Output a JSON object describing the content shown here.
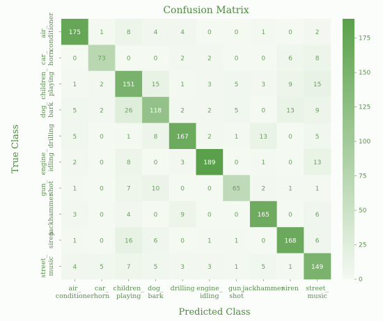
{
  "chart_data": {
    "type": "heatmap",
    "title": "Confusion Matrix",
    "xlabel": "Predicted Class",
    "ylabel": "True Class",
    "x_tick_labels": [
      [
        "air_",
        "conditioner"
      ],
      [
        "car_",
        "horn"
      ],
      [
        "children_",
        "playing"
      ],
      [
        "dog_",
        "bark"
      ],
      [
        "drilling"
      ],
      [
        "engine_",
        "idling"
      ],
      [
        "gun_",
        "shot"
      ],
      [
        "jackhammer"
      ],
      [
        "siren"
      ],
      [
        "street_",
        "music"
      ]
    ],
    "y_tick_labels": [
      [
        "air_",
        "conditioner"
      ],
      [
        "car_",
        "horn"
      ],
      [
        "children_",
        "playing"
      ],
      [
        "dog_",
        "bark"
      ],
      [
        "drilling"
      ],
      [
        "engine_",
        "idling"
      ],
      [
        "gun_",
        "shot"
      ],
      [
        "jackhammer"
      ],
      [
        "siren"
      ],
      [
        "street_",
        "music"
      ]
    ],
    "matrix": [
      [
        175,
        1,
        8,
        4,
        4,
        0,
        0,
        1,
        0,
        2
      ],
      [
        0,
        73,
        0,
        0,
        2,
        2,
        0,
        0,
        6,
        8
      ],
      [
        1,
        2,
        151,
        15,
        1,
        3,
        5,
        3,
        9,
        15
      ],
      [
        5,
        2,
        26,
        118,
        2,
        2,
        5,
        0,
        13,
        9
      ],
      [
        5,
        0,
        1,
        8,
        167,
        2,
        1,
        13,
        0,
        5
      ],
      [
        2,
        0,
        8,
        0,
        3,
        189,
        0,
        1,
        0,
        13
      ],
      [
        1,
        0,
        7,
        10,
        0,
        0,
        65,
        2,
        1,
        1
      ],
      [
        3,
        0,
        4,
        0,
        9,
        0,
        0,
        165,
        0,
        6
      ],
      [
        1,
        0,
        16,
        6,
        0,
        1,
        1,
        0,
        168,
        6
      ],
      [
        4,
        5,
        7,
        5,
        3,
        3,
        1,
        5,
        1,
        149
      ]
    ],
    "colorbar": {
      "min": 0,
      "max": 189,
      "ticks": [
        0,
        25,
        50,
        75,
        100,
        125,
        150,
        175
      ]
    },
    "colors": {
      "low": "#f4f9f2",
      "high": "#5aa04a",
      "text_dark": "#6a9f5e",
      "text_light": "#ffffff"
    }
  }
}
